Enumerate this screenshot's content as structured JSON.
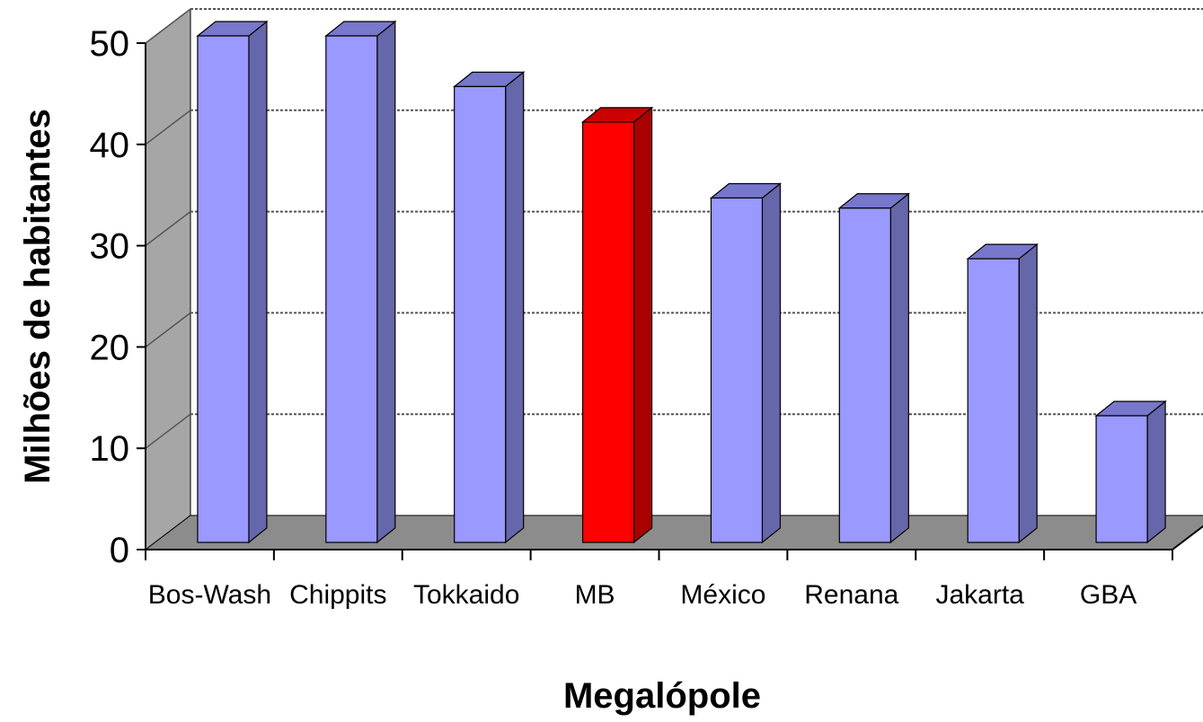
{
  "chart_data": {
    "type": "bar",
    "style": "3d-column",
    "xlabel": "Megalópole",
    "ylabel": "Milhões de habitantes",
    "categories": [
      "Bos-Wash",
      "Chippits",
      "Tokkaido",
      "MB",
      "México",
      "Renana",
      "Jakarta",
      "GBA"
    ],
    "values": [
      50,
      50,
      45,
      41.5,
      34,
      33,
      28,
      12.5
    ],
    "highlight_index": 3,
    "ylim": [
      0,
      50
    ],
    "yticks": [
      0,
      10,
      20,
      30,
      40,
      50
    ],
    "grid": true,
    "grid_style": "dashed",
    "colors": {
      "bar": "#9999ff",
      "bar_side": "#6666aa",
      "bar_top": "#7777cc",
      "highlight": "#ff0000",
      "highlight_side": "#aa0000",
      "highlight_top": "#cc0000",
      "wall": "#a6a6a6",
      "floor": "#8c8c8c",
      "grid": "#555555"
    }
  }
}
